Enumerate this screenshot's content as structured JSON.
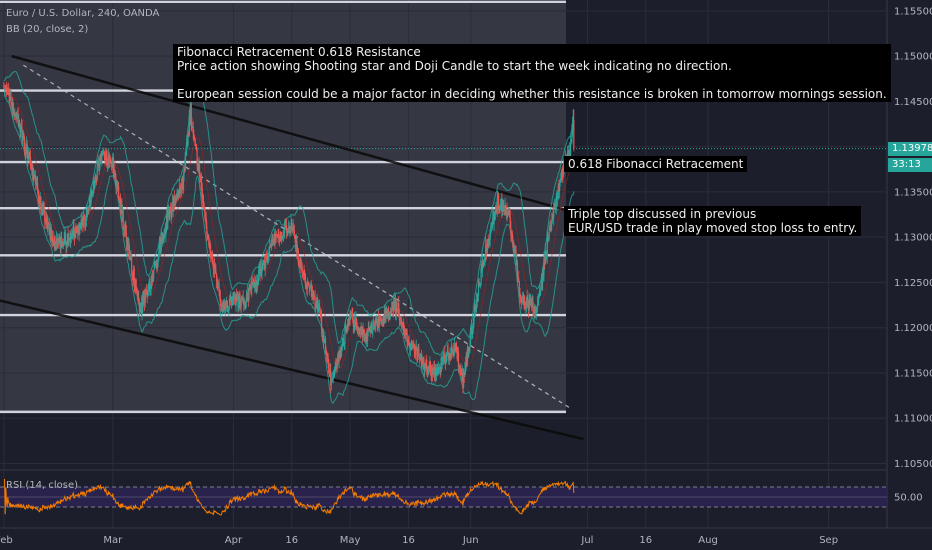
{
  "header": {
    "symbol_line": "Euro / U.S. Dollar, 240, OANDA",
    "indicator_line": "BB (20, close, 2)",
    "rsi_label": "RSI (14, close)"
  },
  "annotations": {
    "main_lines": [
      "Fibonacci Retracement 0.618 Resistance",
      "Price action showing Shooting star and Doji Candle to start the week indicating no direction.",
      "",
      "European session could be a major factor in deciding whether this resistance is broken in tomorrow mornings session."
    ],
    "fib_label": "0.618 Fibonacci Retracement",
    "triple_top_lines": [
      "Triple top discussed in previous",
      "EUR/USD trade in play moved stop loss to entry."
    ]
  },
  "price_tags": {
    "last_price": "1.13978",
    "countdown": "33:13"
  },
  "colors": {
    "background": "#1c1f2b",
    "up_candle": "#26a69a",
    "down_candle": "#ef5350",
    "bollinger": "#26a69a",
    "rsi_line": "#f57c00",
    "rsi_band": "#2a2250",
    "support_lines": "#d1d4dc",
    "trend_lines": "#0a0a0a",
    "note_background": "#000000",
    "last_price_tag": "#26a69a"
  },
  "chart_data": {
    "type": "candlestick",
    "symbol": "Euro / U.S. Dollar",
    "interval": "240",
    "source": "OANDA",
    "y_ticks": [
      "1.15500",
      "1.15000",
      "1.14500",
      "1.14000",
      "1.13500",
      "1.13000",
      "1.12500",
      "1.12000",
      "1.11500",
      "1.11000",
      "1.10500"
    ],
    "y_range": [
      1.1045,
      1.1562
    ],
    "x_ticks": [
      "Feb",
      "Mar",
      "Apr",
      "16",
      "May",
      "16",
      "Jun",
      "Jul",
      "16",
      "Aug",
      "Sep"
    ],
    "x_tick_dates": [
      "2019-02-01",
      "2019-03-01",
      "2019-04-01",
      "2019-04-16",
      "2019-05-01",
      "2019-05-16",
      "2019-06-01",
      "2019-07-01",
      "2019-07-16",
      "2019-08-01",
      "2019-09-01"
    ],
    "x_range": [
      "2019-01-31",
      "2019-09-16"
    ],
    "last_price": 1.13978,
    "price_path": [
      [
        "2019-02-01",
        1.147
      ],
      [
        "2019-02-05",
        1.1425
      ],
      [
        "2019-02-10",
        1.1345
      ],
      [
        "2019-02-14",
        1.129
      ],
      [
        "2019-02-18",
        1.13
      ],
      [
        "2019-02-22",
        1.132
      ],
      [
        "2019-02-26",
        1.139
      ],
      [
        "2019-03-01",
        1.138
      ],
      [
        "2019-03-04",
        1.131
      ],
      [
        "2019-03-08",
        1.122
      ],
      [
        "2019-03-11",
        1.125
      ],
      [
        "2019-03-15",
        1.132
      ],
      [
        "2019-03-19",
        1.136
      ],
      [
        "2019-03-21",
        1.144
      ],
      [
        "2019-03-25",
        1.131
      ],
      [
        "2019-03-29",
        1.122
      ],
      [
        "2019-04-01",
        1.123
      ],
      [
        "2019-04-04",
        1.123
      ],
      [
        "2019-04-08",
        1.126
      ],
      [
        "2019-04-12",
        1.13
      ],
      [
        "2019-04-16",
        1.131
      ],
      [
        "2019-04-19",
        1.1255
      ],
      [
        "2019-04-23",
        1.122
      ],
      [
        "2019-04-26",
        1.114
      ],
      [
        "2019-05-01",
        1.121
      ],
      [
        "2019-05-05",
        1.119
      ],
      [
        "2019-05-09",
        1.121
      ],
      [
        "2019-05-13",
        1.1225
      ],
      [
        "2019-05-16",
        1.1185
      ],
      [
        "2019-05-20",
        1.116
      ],
      [
        "2019-05-23",
        1.115
      ],
      [
        "2019-05-28",
        1.118
      ],
      [
        "2019-05-30",
        1.114
      ],
      [
        "2019-06-02",
        1.122
      ],
      [
        "2019-06-05",
        1.129
      ],
      [
        "2019-06-08",
        1.134
      ],
      [
        "2019-06-11",
        1.132
      ],
      [
        "2019-06-14",
        1.123
      ],
      [
        "2019-06-18",
        1.122
      ],
      [
        "2019-06-21",
        1.13
      ],
      [
        "2019-06-25",
        1.138
      ],
      [
        "2019-06-27",
        1.14
      ]
    ],
    "support_levels": [
      1.156,
      1.1462,
      1.1383,
      1.1332,
      1.128,
      1.1214,
      1.1107
    ],
    "fib_0618_level": 1.1383,
    "rsi_levels": [
      70,
      50,
      30
    ],
    "rsi_tick_labels": [
      "50.00"
    ]
  }
}
